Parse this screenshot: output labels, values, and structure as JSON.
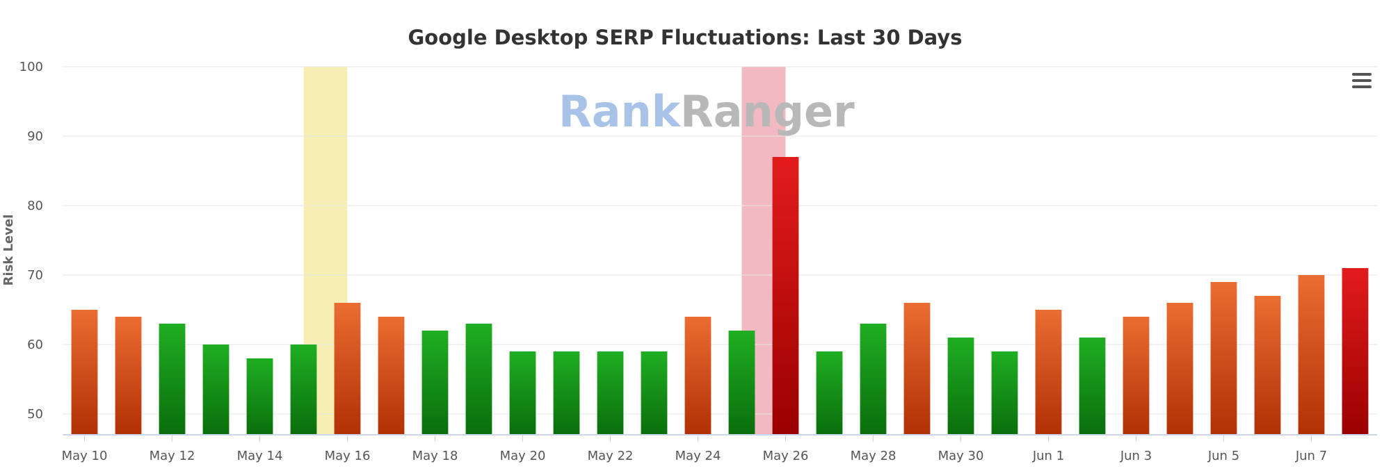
{
  "watermark": {
    "part1": "Rank",
    "part2": "Ranger"
  },
  "menu": {
    "icon": "hamburger-menu-icon"
  },
  "colors": {
    "stable_top": "#1fae22",
    "stable_bottom": "#0a6e0c",
    "warm_top": "#ea6d32",
    "warm_bottom": "#b23005",
    "hot_top": "#e31c1c",
    "hot_bottom": "#9a0000",
    "band_warm": "#f6eeb3",
    "band_hot": "#f2b9c3",
    "grid": "#e6e6e6",
    "axis": "#ccd6eb"
  },
  "chart_data": {
    "type": "bar",
    "title": "Google Desktop SERP Fluctuations: Last 30 Days",
    "xlabel": "",
    "ylabel": "Risk Level",
    "ylim": [
      47,
      100
    ],
    "yticks": [
      50,
      60,
      70,
      80,
      90,
      100
    ],
    "grid": true,
    "legend": "none",
    "categories": [
      "May 10",
      "May 11",
      "May 12",
      "May 13",
      "May 14",
      "May 15",
      "May 16",
      "May 17",
      "May 18",
      "May 19",
      "May 20",
      "May 21",
      "May 22",
      "May 23",
      "May 24",
      "May 25",
      "May 26",
      "May 27",
      "May 28",
      "May 29",
      "May 30",
      "May 31",
      "Jun 1",
      "Jun 2",
      "Jun 3",
      "Jun 4",
      "Jun 5",
      "Jun 6",
      "Jun 7",
      "Jun 8"
    ],
    "xtick_labels": [
      "May 10",
      "May 12",
      "May 14",
      "May 16",
      "May 18",
      "May 20",
      "May 22",
      "May 24",
      "May 26",
      "May 28",
      "May 30",
      "Jun 1",
      "Jun 3",
      "Jun 5",
      "Jun 7"
    ],
    "values": [
      65,
      64,
      63,
      60,
      58,
      60,
      66,
      64,
      62,
      63,
      59,
      59,
      59,
      59,
      64,
      62,
      87,
      59,
      63,
      66,
      61,
      59,
      65,
      61,
      64,
      66,
      69,
      67,
      70,
      71
    ],
    "bar_levels": [
      "warm",
      "warm",
      "stable",
      "stable",
      "stable",
      "stable",
      "warm",
      "warm",
      "stable",
      "stable",
      "stable",
      "stable",
      "stable",
      "stable",
      "warm",
      "stable",
      "hot",
      "stable",
      "stable",
      "warm",
      "stable",
      "stable",
      "warm",
      "stable",
      "warm",
      "warm",
      "warm",
      "warm",
      "warm",
      "hot"
    ],
    "highlight_bands": [
      {
        "from": "May 15",
        "to": "May 16",
        "level": "warm"
      },
      {
        "from": "May 25",
        "to": "May 26",
        "level": "hot"
      }
    ]
  }
}
